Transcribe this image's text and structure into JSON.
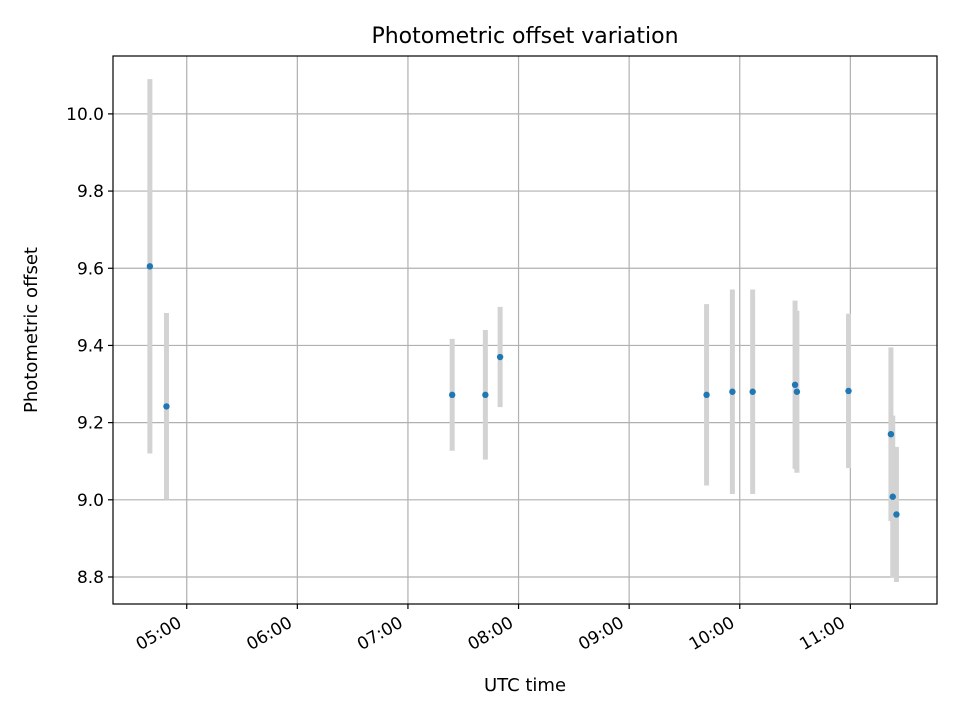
{
  "chart_data": {
    "type": "scatter",
    "title": "Photometric offset variation",
    "xlabel": "UTC time",
    "ylabel": "Photometric offset",
    "xlim": [
      "04:20",
      "11:47"
    ],
    "ylim": [
      8.73,
      10.15
    ],
    "x_ticks": [
      "05:00",
      "06:00",
      "07:00",
      "08:00",
      "09:00",
      "10:00",
      "11:00"
    ],
    "y_ticks": [
      "8.8",
      "9.0",
      "9.2",
      "9.4",
      "9.6",
      "9.8",
      "10.0"
    ],
    "grid": true,
    "colors": {
      "point": "#1f77b4",
      "errorbar": "#d3d3d3",
      "grid": "#b0b0b0"
    },
    "points": [
      {
        "x": "04:40",
        "y": 9.605,
        "err": 0.485
      },
      {
        "x": "04:49",
        "y": 9.242,
        "err": 0.242
      },
      {
        "x": "07:24",
        "y": 9.272,
        "err": 0.145
      },
      {
        "x": "07:42",
        "y": 9.272,
        "err": 0.168
      },
      {
        "x": "07:50",
        "y": 9.37,
        "err": 0.13
      },
      {
        "x": "09:42",
        "y": 9.272,
        "err": 0.235
      },
      {
        "x": "09:56",
        "y": 9.28,
        "err": 0.265
      },
      {
        "x": "10:07",
        "y": 9.28,
        "err": 0.265
      },
      {
        "x": "10:30",
        "y": 9.298,
        "err": 0.218
      },
      {
        "x": "10:31",
        "y": 9.28,
        "err": 0.21
      },
      {
        "x": "10:59",
        "y": 9.282,
        "err": 0.2
      },
      {
        "x": "11:22",
        "y": 9.17,
        "err": 0.225
      },
      {
        "x": "11:23",
        "y": 9.008,
        "err": 0.21
      },
      {
        "x": "11:25",
        "y": 8.962,
        "err": 0.175
      }
    ]
  }
}
